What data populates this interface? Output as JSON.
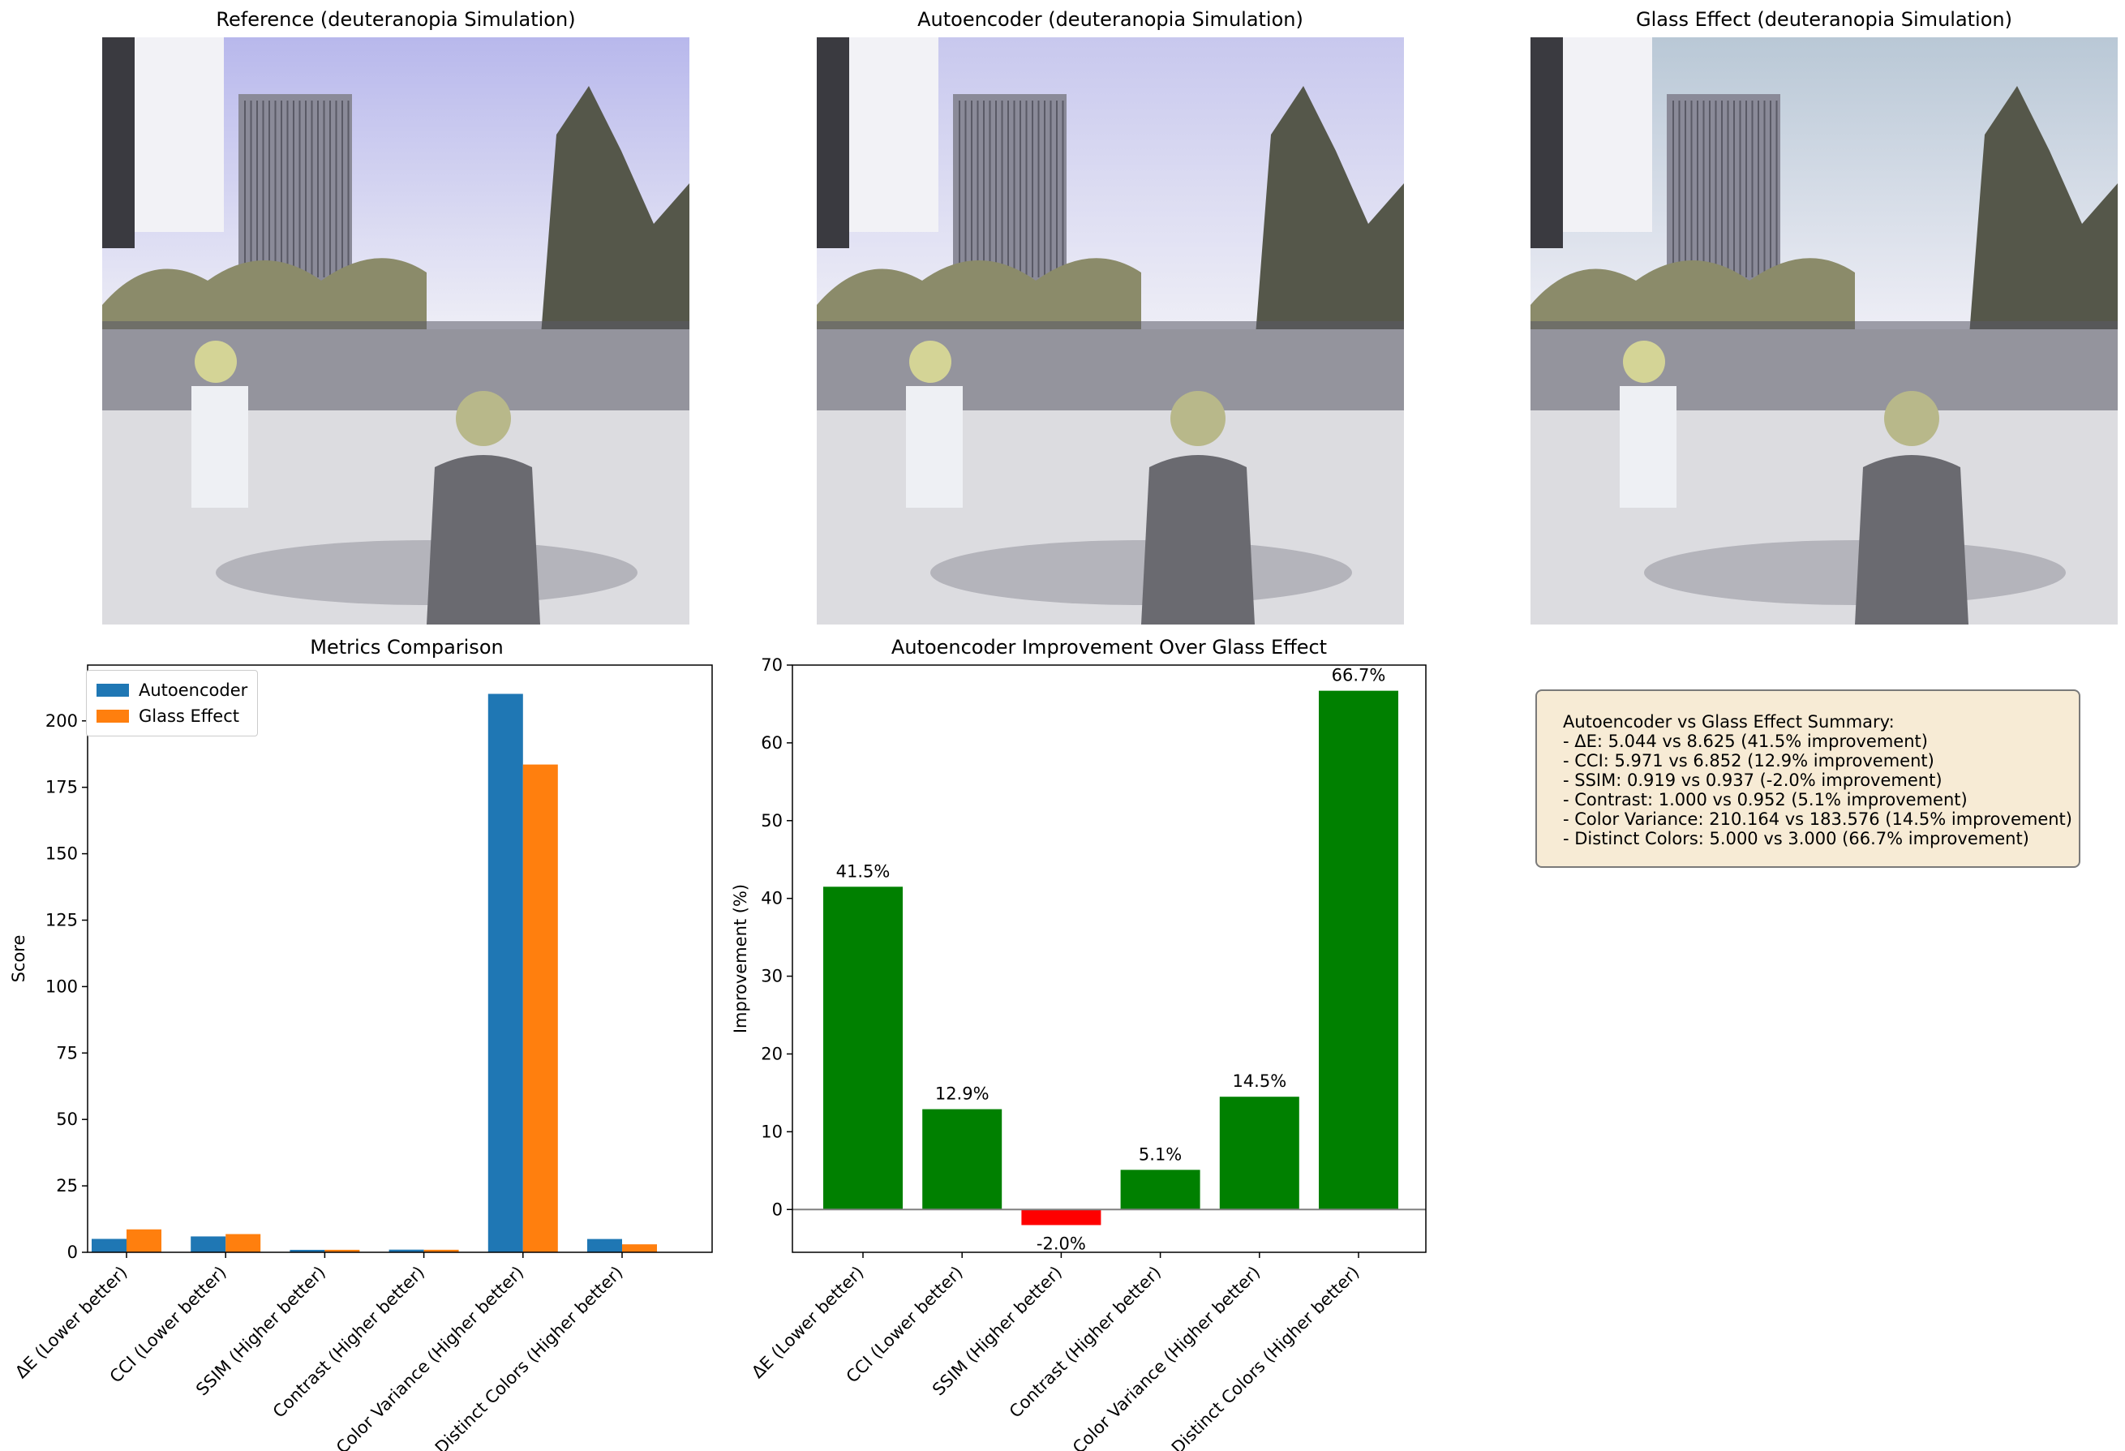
{
  "photos": [
    {
      "title": "Reference (deuteranopia Simulation)",
      "tint": "#b8b8ec"
    },
    {
      "title": "Autoencoder (deuteranopia Simulation)",
      "tint": "#c8c8ee"
    },
    {
      "title": "Glass Effect (deuteranopia Simulation)",
      "tint": "#b9c8d6"
    }
  ],
  "colors": {
    "autoencoder": "#1f77b4",
    "glass": "#ff7f0e",
    "positive": "#008000",
    "negative": "#ff0000",
    "summary_bg": "#f7ebd5"
  },
  "chart_data": [
    {
      "type": "bar",
      "title": "Metrics Comparison",
      "xlabel": "",
      "ylabel": "Score",
      "categories": [
        "ΔE (Lower better)",
        "CCI (Lower better)",
        "SSIM (Higher better)",
        "Contrast (Higher better)",
        "Color Variance (Higher better)",
        "Distinct Colors (Higher better)"
      ],
      "series": [
        {
          "name": "Autoencoder",
          "values": [
            5.044,
            5.971,
            0.919,
            1.0,
            210.164,
            5.0
          ]
        },
        {
          "name": "Glass Effect",
          "values": [
            8.625,
            6.852,
            0.937,
            0.952,
            183.576,
            3.0
          ]
        }
      ],
      "ylim": [
        0,
        221
      ],
      "yticks": [
        0,
        25,
        50,
        75,
        100,
        125,
        150,
        175,
        200
      ],
      "legend": "top-left",
      "grid": false
    },
    {
      "type": "bar",
      "title": "Autoencoder Improvement Over Glass Effect",
      "xlabel": "",
      "ylabel": "Improvement (%)",
      "categories": [
        "ΔE (Lower better)",
        "CCI (Lower better)",
        "SSIM (Higher better)",
        "Contrast (Higher better)",
        "Color Variance (Higher better)",
        "Distinct Colors (Higher better)"
      ],
      "values": [
        41.5,
        12.9,
        -2.0,
        5.1,
        14.5,
        66.7
      ],
      "labels": [
        "41.5%",
        "12.9%",
        "-2.0%",
        "5.1%",
        "14.5%",
        "66.7%"
      ],
      "ylim": [
        -5.5,
        70
      ],
      "yticks": [
        0,
        10,
        20,
        30,
        40,
        50,
        60,
        70
      ],
      "zero_line": true,
      "grid": false
    }
  ],
  "summary": {
    "lines": [
      "Autoencoder vs Glass Effect Summary:",
      "- ΔE: 5.044 vs 8.625 (41.5% improvement)",
      "- CCI: 5.971 vs 6.852 (12.9% improvement)",
      "- SSIM: 0.919 vs 0.937 (-2.0% improvement)",
      "- Contrast: 1.000 vs 0.952 (5.1% improvement)",
      "- Color Variance: 210.164 vs 183.576 (14.5% improvement)",
      "- Distinct Colors: 5.000 vs 3.000 (66.7% improvement)"
    ]
  }
}
